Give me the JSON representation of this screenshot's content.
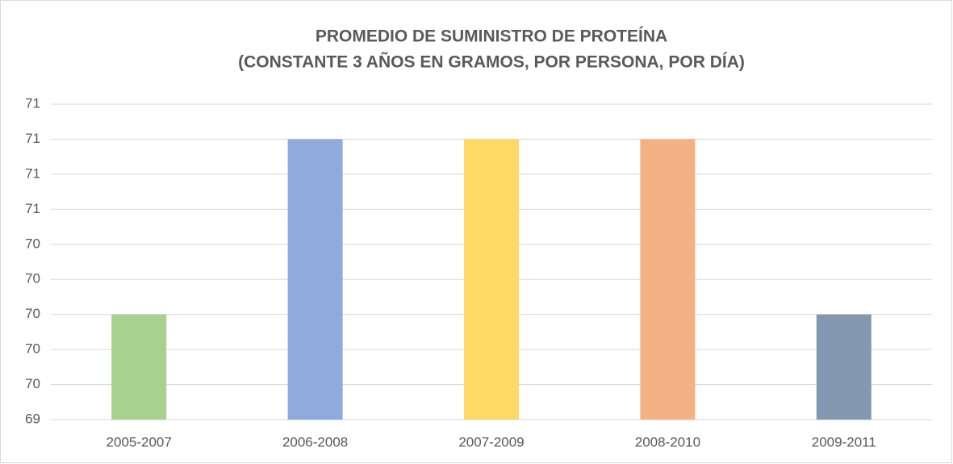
{
  "chart_data": {
    "type": "bar",
    "title": [
      "PROMEDIO DE SUMINISTRO DE PROTEÍNA",
      "(CONSTANTE 3 AÑOS EN GRAMOS, POR PERSONA, POR DÍA)"
    ],
    "categories": [
      "2005-2007",
      "2006-2008",
      "2007-2009",
      "2008-2010",
      "2009-2011"
    ],
    "values": [
      70,
      71,
      71,
      71,
      70
    ],
    "colors": [
      "#a9d18e",
      "#8faadc",
      "#ffd966",
      "#f4b183",
      "#8497b0"
    ],
    "ylim": [
      69.4,
      71.2
    ],
    "yticks": [
      {
        "value": 69.4,
        "label": "69"
      },
      {
        "value": 69.6,
        "label": "70"
      },
      {
        "value": 69.8,
        "label": "70"
      },
      70,
      {
        "value": 70.2,
        "label": "70"
      },
      {
        "value": 70.4,
        "label": "70"
      },
      {
        "value": 70.6,
        "label": "71"
      },
      {
        "value": 70.8,
        "label": "71"
      },
      71,
      {
        "value": 71.2,
        "label": "71"
      }
    ],
    "grid": true
  }
}
